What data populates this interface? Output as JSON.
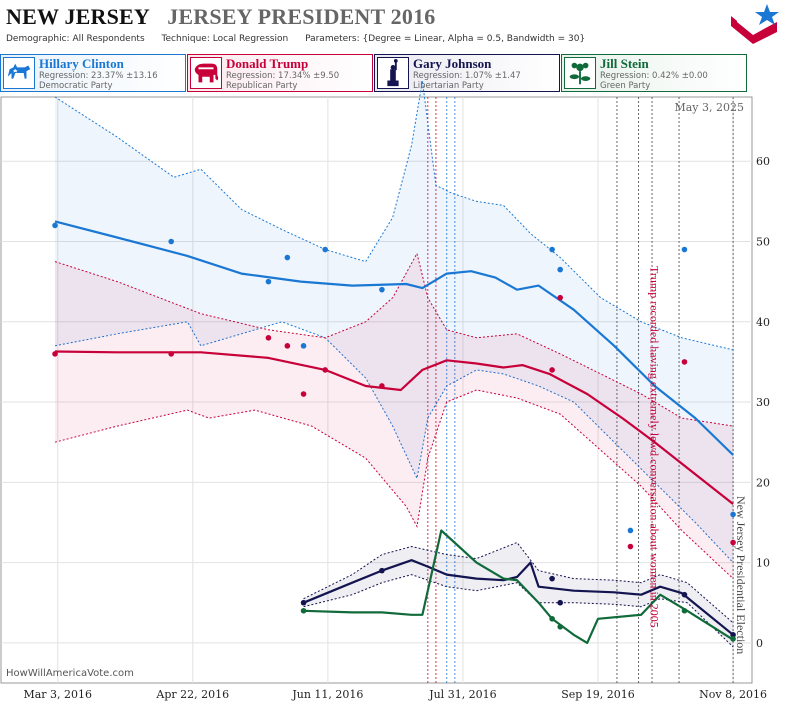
{
  "header": {
    "state": "NEW JERSEY",
    "race": "JERSEY PRESIDENT 2016",
    "demographic_label": "Demographic:",
    "demographic": "All Respondents",
    "technique_label": "Technique:",
    "technique": "Local Regression",
    "parameters_label": "Parameters:",
    "parameters": "{Degree = Linear, Alpha = 0.5, Bandwidth = 30}"
  },
  "logo_icon": "stars-and-stripes-logo-icon",
  "candidates": [
    {
      "name": "Hillary Clinton",
      "regression": "Regression: 23.37% ±13.16",
      "party": "Democratic Party",
      "color": "#1a78d4",
      "icon": "donkey-icon"
    },
    {
      "name": "Donald Trump",
      "regression": "Regression: 17.34% ±9.50",
      "party": "Republican Party",
      "color": "#c8003a",
      "icon": "elephant-icon"
    },
    {
      "name": "Gary Johnson",
      "regression": "Regression: 1.07% ±1.47",
      "party": "Libertarian Party",
      "color": "#141450",
      "icon": "statue-of-liberty-icon"
    },
    {
      "name": "Jill Stein",
      "regression": "Regression: 0.42% ±0.00",
      "party": "Green Party",
      "color": "#106a3a",
      "icon": "flower-icon"
    }
  ],
  "watermark": "HowWillAmericaVote.com",
  "chart_data": {
    "type": "line",
    "date_label": "May 3, 2025",
    "x_ticks": [
      "Mar 3, 2016",
      "Apr 22, 2016",
      "Jun 11, 2016",
      "Jul 31, 2016",
      "Sep 19, 2016",
      "Nov 8, 2016"
    ],
    "y_ticks": [
      0,
      10,
      20,
      30,
      40,
      50,
      60
    ],
    "ylim": [
      -5,
      68
    ],
    "xlim": [
      "2016-02-11",
      "2016-11-15"
    ],
    "gridlines": true,
    "annotations": [
      {
        "text": "Trump recorded having extremely lewd conversation about women in 2005",
        "date": "2016-10-07",
        "color": "#c8003a"
      },
      {
        "text": "New Jersey Presidential Election",
        "date": "2016-11-08",
        "color": "#444444"
      }
    ],
    "event_lines": [
      {
        "date": "2016-07-18",
        "color": "#c8003a"
      },
      {
        "date": "2016-07-21",
        "color": "#c8003a"
      },
      {
        "date": "2016-07-25",
        "color": "#1a78d4"
      },
      {
        "date": "2016-07-28",
        "color": "#1a78d4"
      },
      {
        "date": "2016-09-26",
        "color": "#444444"
      },
      {
        "date": "2016-10-04",
        "color": "#444444"
      },
      {
        "date": "2016-10-09",
        "color": "#444444"
      },
      {
        "date": "2016-10-19",
        "color": "#444444"
      },
      {
        "date": "2016-11-08",
        "color": "#444444"
      }
    ],
    "series": [
      {
        "name": "Hillary Clinton",
        "color": "#1a78d4",
        "trend": [
          [
            "2016-03-02",
            52.5
          ],
          [
            "2016-03-25",
            50.5
          ],
          [
            "2016-04-20",
            48.2
          ],
          [
            "2016-05-10",
            46.0
          ],
          [
            "2016-06-01",
            45.0
          ],
          [
            "2016-06-20",
            44.5
          ],
          [
            "2016-07-10",
            44.7
          ],
          [
            "2016-07-16",
            44.2
          ],
          [
            "2016-07-25",
            46.0
          ],
          [
            "2016-08-03",
            46.3
          ],
          [
            "2016-08-12",
            45.5
          ],
          [
            "2016-08-20",
            44.0
          ],
          [
            "2016-08-28",
            44.5
          ],
          [
            "2016-09-10",
            41.5
          ],
          [
            "2016-09-25",
            37.0
          ],
          [
            "2016-10-10",
            32.0
          ],
          [
            "2016-10-25",
            28.0
          ],
          [
            "2016-11-08",
            23.4
          ]
        ],
        "upper": [
          [
            "2016-03-02",
            68.0
          ],
          [
            "2016-03-25",
            63.0
          ],
          [
            "2016-04-15",
            58.0
          ],
          [
            "2016-04-25",
            59.0
          ],
          [
            "2016-05-10",
            54.0
          ],
          [
            "2016-05-25",
            51.5
          ],
          [
            "2016-06-10",
            49.0
          ],
          [
            "2016-06-25",
            47.5
          ],
          [
            "2016-07-05",
            53.0
          ],
          [
            "2016-07-12",
            62.0
          ],
          [
            "2016-07-16",
            70.0
          ],
          [
            "2016-07-21",
            57.0
          ],
          [
            "2016-07-27",
            56.0
          ],
          [
            "2016-08-05",
            55.0
          ],
          [
            "2016-08-15",
            54.5
          ],
          [
            "2016-08-25",
            51.0
          ],
          [
            "2016-09-05",
            48.0
          ],
          [
            "2016-09-20",
            43.0
          ],
          [
            "2016-10-05",
            40.0
          ],
          [
            "2016-10-20",
            38.0
          ],
          [
            "2016-11-08",
            36.5
          ]
        ],
        "lower": [
          [
            "2016-03-02",
            37.0
          ],
          [
            "2016-03-25",
            38.5
          ],
          [
            "2016-04-20",
            40.0
          ],
          [
            "2016-04-25",
            37.0
          ],
          [
            "2016-05-10",
            38.5
          ],
          [
            "2016-05-25",
            40.0
          ],
          [
            "2016-06-10",
            38.0
          ],
          [
            "2016-06-25",
            33.0
          ],
          [
            "2016-07-05",
            27.0
          ],
          [
            "2016-07-14",
            20.5
          ],
          [
            "2016-07-18",
            28.0
          ],
          [
            "2016-07-25",
            32.0
          ],
          [
            "2016-08-05",
            34.0
          ],
          [
            "2016-08-15",
            33.5
          ],
          [
            "2016-08-28",
            32.0
          ],
          [
            "2016-09-10",
            30.0
          ],
          [
            "2016-09-25",
            25.0
          ],
          [
            "2016-10-10",
            20.0
          ],
          [
            "2016-10-25",
            15.0
          ],
          [
            "2016-11-08",
            10.0
          ]
        ],
        "points": [
          [
            "2016-03-02",
            52
          ],
          [
            "2016-04-14",
            50
          ],
          [
            "2016-05-20",
            45
          ],
          [
            "2016-05-27",
            48
          ],
          [
            "2016-06-02",
            37
          ],
          [
            "2016-06-10",
            49
          ],
          [
            "2016-07-01",
            44
          ],
          [
            "2016-09-02",
            49
          ],
          [
            "2016-09-05",
            46.5
          ],
          [
            "2016-10-01",
            14
          ],
          [
            "2016-10-21",
            49
          ],
          [
            "2016-11-08",
            16
          ]
        ]
      },
      {
        "name": "Donald Trump",
        "color": "#c8003a",
        "trend": [
          [
            "2016-03-02",
            36.3
          ],
          [
            "2016-03-25",
            36.2
          ],
          [
            "2016-04-25",
            36.2
          ],
          [
            "2016-05-20",
            35.5
          ],
          [
            "2016-06-10",
            34.0
          ],
          [
            "2016-06-25",
            32.0
          ],
          [
            "2016-07-08",
            31.5
          ],
          [
            "2016-07-16",
            34.0
          ],
          [
            "2016-07-25",
            35.2
          ],
          [
            "2016-08-05",
            34.8
          ],
          [
            "2016-08-15",
            34.3
          ],
          [
            "2016-08-22",
            34.6
          ],
          [
            "2016-09-01",
            33.5
          ],
          [
            "2016-09-15",
            31.0
          ],
          [
            "2016-09-28",
            28.0
          ],
          [
            "2016-10-10",
            25.0
          ],
          [
            "2016-10-25",
            21.0
          ],
          [
            "2016-11-08",
            17.3
          ]
        ],
        "upper": [
          [
            "2016-03-02",
            47.5
          ],
          [
            "2016-03-25",
            45.0
          ],
          [
            "2016-04-25",
            41.0
          ],
          [
            "2016-05-20",
            39.0
          ],
          [
            "2016-06-10",
            38.0
          ],
          [
            "2016-06-25",
            40.0
          ],
          [
            "2016-07-05",
            43.0
          ],
          [
            "2016-07-14",
            48.5
          ],
          [
            "2016-07-18",
            43.0
          ],
          [
            "2016-07-25",
            39.0
          ],
          [
            "2016-08-05",
            38.0
          ],
          [
            "2016-08-20",
            38.5
          ],
          [
            "2016-09-05",
            36.0
          ],
          [
            "2016-09-20",
            33.5
          ],
          [
            "2016-10-05",
            31.0
          ],
          [
            "2016-10-20",
            28.0
          ],
          [
            "2016-11-08",
            27.0
          ]
        ],
        "lower": [
          [
            "2016-03-02",
            25.0
          ],
          [
            "2016-03-25",
            27.0
          ],
          [
            "2016-04-20",
            29.0
          ],
          [
            "2016-04-28",
            28.0
          ],
          [
            "2016-05-15",
            29.0
          ],
          [
            "2016-06-05",
            27.0
          ],
          [
            "2016-06-25",
            23.0
          ],
          [
            "2016-07-10",
            17.0
          ],
          [
            "2016-07-14",
            14.5
          ],
          [
            "2016-07-18",
            23.0
          ],
          [
            "2016-07-25",
            30.0
          ],
          [
            "2016-08-05",
            31.5
          ],
          [
            "2016-08-20",
            30.5
          ],
          [
            "2016-09-05",
            28.5
          ],
          [
            "2016-09-20",
            24.0
          ],
          [
            "2016-10-05",
            19.5
          ],
          [
            "2016-10-20",
            14.0
          ],
          [
            "2016-11-08",
            8.0
          ]
        ],
        "points": [
          [
            "2016-03-02",
            36
          ],
          [
            "2016-04-14",
            36
          ],
          [
            "2016-05-20",
            38
          ],
          [
            "2016-05-27",
            37
          ],
          [
            "2016-06-02",
            31
          ],
          [
            "2016-06-10",
            34
          ],
          [
            "2016-07-01",
            32
          ],
          [
            "2016-09-02",
            34
          ],
          [
            "2016-09-05",
            43
          ],
          [
            "2016-10-01",
            12
          ],
          [
            "2016-10-21",
            35
          ],
          [
            "2016-11-08",
            12.5
          ]
        ]
      },
      {
        "name": "Gary Johnson",
        "color": "#141450",
        "trend": [
          [
            "2016-06-02",
            5.0
          ],
          [
            "2016-06-20",
            7.5
          ],
          [
            "2016-07-01",
            9.0
          ],
          [
            "2016-07-12",
            10.3
          ],
          [
            "2016-07-18",
            9.5
          ],
          [
            "2016-07-25",
            8.5
          ],
          [
            "2016-08-05",
            8.0
          ],
          [
            "2016-08-15",
            7.8
          ],
          [
            "2016-08-20",
            8.2
          ],
          [
            "2016-08-25",
            10.0
          ],
          [
            "2016-08-28",
            7.0
          ],
          [
            "2016-09-10",
            6.5
          ],
          [
            "2016-09-25",
            6.3
          ],
          [
            "2016-10-05",
            6.0
          ],
          [
            "2016-10-12",
            7.0
          ],
          [
            "2016-10-20",
            6.2
          ],
          [
            "2016-11-08",
            1.0
          ]
        ],
        "upper": [
          [
            "2016-06-02",
            5.5
          ],
          [
            "2016-06-20",
            8.5
          ],
          [
            "2016-07-01",
            11.0
          ],
          [
            "2016-07-12",
            12.0
          ],
          [
            "2016-07-25",
            11.0
          ],
          [
            "2016-08-05",
            10.5
          ],
          [
            "2016-08-20",
            12.5
          ],
          [
            "2016-08-28",
            9.0
          ],
          [
            "2016-09-10",
            8.0
          ],
          [
            "2016-09-25",
            7.8
          ],
          [
            "2016-10-05",
            7.5
          ],
          [
            "2016-10-12",
            8.5
          ],
          [
            "2016-10-22",
            7.5
          ],
          [
            "2016-11-08",
            2.5
          ]
        ],
        "lower": [
          [
            "2016-06-02",
            4.5
          ],
          [
            "2016-06-20",
            6.0
          ],
          [
            "2016-07-01",
            7.5
          ],
          [
            "2016-07-12",
            8.5
          ],
          [
            "2016-07-25",
            7.0
          ],
          [
            "2016-08-05",
            6.5
          ],
          [
            "2016-08-20",
            7.5
          ],
          [
            "2016-08-28",
            5.0
          ],
          [
            "2016-09-10",
            5.0
          ],
          [
            "2016-09-25",
            4.8
          ],
          [
            "2016-10-05",
            4.5
          ],
          [
            "2016-10-12",
            5.5
          ],
          [
            "2016-10-22",
            5.0
          ],
          [
            "2016-11-08",
            -0.5
          ]
        ],
        "points": [
          [
            "2016-06-02",
            5
          ],
          [
            "2016-07-01",
            9
          ],
          [
            "2016-09-02",
            8
          ],
          [
            "2016-09-05",
            5
          ],
          [
            "2016-10-21",
            6
          ],
          [
            "2016-11-08",
            1
          ]
        ]
      },
      {
        "name": "Jill Stein",
        "color": "#106a3a",
        "trend": [
          [
            "2016-06-02",
            4.0
          ],
          [
            "2016-06-20",
            3.8
          ],
          [
            "2016-07-01",
            3.8
          ],
          [
            "2016-07-12",
            3.5
          ],
          [
            "2016-07-16",
            3.5
          ],
          [
            "2016-07-23",
            14.0
          ],
          [
            "2016-08-05",
            10.0
          ],
          [
            "2016-08-15",
            8.0
          ],
          [
            "2016-08-20",
            7.8
          ],
          [
            "2016-08-28",
            5.0
          ],
          [
            "2016-09-02",
            3.0
          ],
          [
            "2016-09-10",
            1.0
          ],
          [
            "2016-09-15",
            0.0
          ],
          [
            "2016-09-19",
            3.0
          ],
          [
            "2016-10-05",
            3.5
          ],
          [
            "2016-10-12",
            6.0
          ],
          [
            "2016-10-22",
            4.0
          ],
          [
            "2016-11-08",
            0.4
          ]
        ],
        "upper": [],
        "lower": [],
        "points": [
          [
            "2016-06-02",
            4
          ],
          [
            "2016-09-02",
            3
          ],
          [
            "2016-09-05",
            2
          ],
          [
            "2016-10-21",
            4
          ],
          [
            "2016-11-08",
            0.5
          ]
        ]
      }
    ]
  }
}
